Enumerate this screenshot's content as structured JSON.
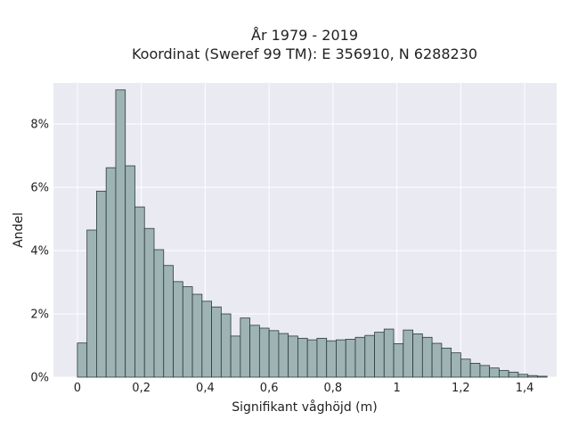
{
  "chart_data": {
    "type": "bar",
    "title_line1": "År 1979 - 2019",
    "title_line2": "Koordinat (Sweref 99 TM): E 356910, N 6288230",
    "xlabel": "Signifikant våghöjd (m)",
    "ylabel": "Andel",
    "xlim": [
      -0.075,
      1.5
    ],
    "ylim": [
      0,
      9.3
    ],
    "x_ticks": [
      {
        "value": 0,
        "label": "0"
      },
      {
        "value": 0.2,
        "label": "0,2"
      },
      {
        "value": 0.4,
        "label": "0,4"
      },
      {
        "value": 0.6,
        "label": "0,6"
      },
      {
        "value": 0.8,
        "label": "0,8"
      },
      {
        "value": 1.0,
        "label": "1"
      },
      {
        "value": 1.2,
        "label": "1,2"
      },
      {
        "value": 1.4,
        "label": "1,4"
      }
    ],
    "y_ticks": [
      {
        "value": 0,
        "label": "0%"
      },
      {
        "value": 2,
        "label": "2%"
      },
      {
        "value": 4,
        "label": "4%"
      },
      {
        "value": 6,
        "label": "6%"
      },
      {
        "value": 8,
        "label": "8%"
      }
    ],
    "bin_start": 0,
    "bin_width": 0.03,
    "values": [
      1.08,
      4.65,
      5.88,
      6.62,
      9.08,
      6.68,
      5.38,
      4.7,
      4.03,
      3.53,
      3.02,
      2.86,
      2.62,
      2.4,
      2.22,
      2.0,
      1.3,
      1.87,
      1.64,
      1.55,
      1.47,
      1.38,
      1.3,
      1.23,
      1.18,
      1.23,
      1.15,
      1.18,
      1.2,
      1.26,
      1.32,
      1.42,
      1.52,
      1.06,
      1.49,
      1.37,
      1.26,
      1.07,
      0.92,
      0.77,
      0.57,
      0.44,
      0.37,
      0.29,
      0.21,
      0.16,
      0.09,
      0.05,
      0.03
    ],
    "bar_color": "#9eb3b3",
    "bar_edge_color": "#2d3b3b",
    "plot_background": "#eaeaf2",
    "grid": true
  }
}
